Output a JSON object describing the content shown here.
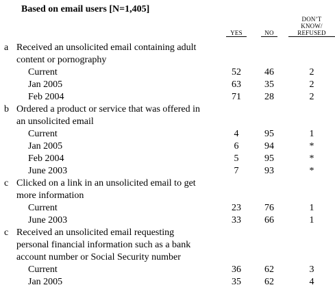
{
  "title": "Based on email users [N=1,405]",
  "columns": {
    "yes": "YES",
    "no": "NO",
    "dk_lines": [
      "DON’T",
      "KNOW/",
      "REFUSED"
    ]
  },
  "questions": [
    {
      "letter": "a",
      "lines": [
        "Received an unsolicited email containing adult",
        "content or pornography"
      ],
      "rows": [
        {
          "label": "Current",
          "yes": "52",
          "no": "46",
          "dk": "2"
        },
        {
          "label": "Jan 2005",
          "yes": "63",
          "no": "35",
          "dk": "2"
        },
        {
          "label": "Feb 2004",
          "yes": "71",
          "no": "28",
          "dk": "2"
        }
      ]
    },
    {
      "letter": "b",
      "lines": [
        "Ordered a product or service that was offered in",
        "an unsolicited email"
      ],
      "rows": [
        {
          "label": "Current",
          "yes": "4",
          "no": "95",
          "dk": "1"
        },
        {
          "label": "Jan 2005",
          "yes": "6",
          "no": "94",
          "dk": "*"
        },
        {
          "label": "Feb 2004",
          "yes": "5",
          "no": "95",
          "dk": "*"
        },
        {
          "label": "June 2003",
          "yes": "7",
          "no": "93",
          "dk": "*"
        }
      ]
    },
    {
      "letter": "c",
      "lines": [
        "Clicked on a link in an unsolicited email to get",
        "more information"
      ],
      "rows": [
        {
          "label": "Current",
          "yes": "23",
          "no": "76",
          "dk": "1"
        },
        {
          "label": "June 2003",
          "yes": "33",
          "no": "66",
          "dk": "1"
        }
      ]
    },
    {
      "letter": "c",
      "lines": [
        "Received an unsolicited email requesting",
        "personal financial information such as a bank",
        "account number or Social Security number"
      ],
      "rows": [
        {
          "label": "Current",
          "yes": "36",
          "no": "62",
          "dk": "3"
        },
        {
          "label": "Jan 2005",
          "yes": "35",
          "no": "62",
          "dk": "4"
        }
      ]
    }
  ]
}
